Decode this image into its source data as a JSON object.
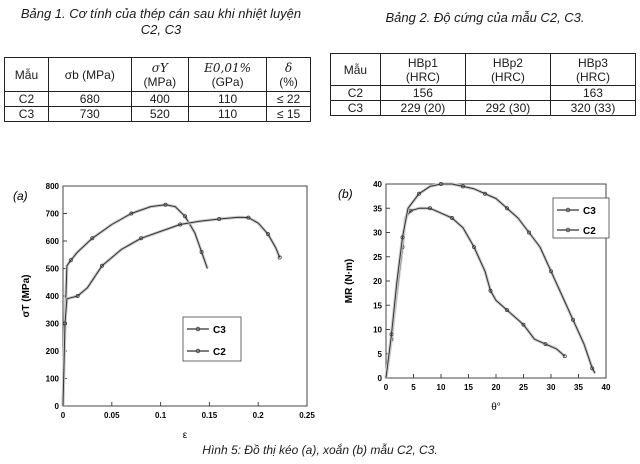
{
  "table1": {
    "caption_line1": "Bảng 1. Cơ tính của thép cán sau khi nhiệt luyện",
    "caption_line2": "C2, C3",
    "headers": {
      "sample": "Mẫu",
      "sigma_b": "σb (MPa)",
      "sigma_y_sym": "σY",
      "sigma_y_unit": "(MPa)",
      "modulus_sym": "E0,01%",
      "modulus_unit": "(GPa)",
      "delta_sym": "δ",
      "delta_unit": "(%)"
    },
    "rows": [
      {
        "sample": "C2",
        "sigma_b": "680",
        "sigma_y": "400",
        "modulus": "110",
        "delta": "≤ 22"
      },
      {
        "sample": "C3",
        "sigma_b": "730",
        "sigma_y": "520",
        "modulus": "110",
        "delta": "≤ 15"
      }
    ]
  },
  "table2": {
    "caption": "Bảng 2. Độ cứng của mẫu C2, C3.",
    "headers": {
      "sample": "Mẫu",
      "hb1": "HBp1",
      "hb2": "HBp2",
      "hb3": "HBp3",
      "unit": "(HRC)"
    },
    "rows": [
      {
        "sample": "C2",
        "hb1": "156",
        "hb2": "",
        "hb3": "163"
      },
      {
        "sample": "C3",
        "hb1": "229 (20)",
        "hb2": "292 (30)",
        "hb3": "320 (33)"
      }
    ]
  },
  "figure_caption": "Hình 5: Đồ thị kéo (a), xoắn (b) mẫu C2, C3.",
  "chart_data": [
    {
      "type": "line",
      "panel_label": "(a)",
      "xlabel": "ε",
      "ylabel": "σT (MPa)",
      "xlim": [
        0,
        0.25
      ],
      "ylim": [
        0,
        800
      ],
      "xticks": [
        "0",
        "0.05",
        "0.1",
        "0.15",
        "0.2",
        "0.25"
      ],
      "yticks": [
        "0",
        "100",
        "200",
        "300",
        "400",
        "500",
        "600",
        "700",
        "800"
      ],
      "grid": false,
      "legend": "center-right",
      "series": [
        {
          "name": "C3",
          "color": "#333333",
          "points": [
            [
              0,
              0
            ],
            [
              0.002,
              300
            ],
            [
              0.004,
              510
            ],
            [
              0.008,
              530
            ],
            [
              0.015,
              560
            ],
            [
              0.03,
              610
            ],
            [
              0.05,
              660
            ],
            [
              0.07,
              700
            ],
            [
              0.09,
              725
            ],
            [
              0.105,
              732
            ],
            [
              0.115,
              725
            ],
            [
              0.125,
              690
            ],
            [
              0.135,
              630
            ],
            [
              0.142,
              560
            ],
            [
              0.148,
              500
            ]
          ]
        },
        {
          "name": "C2",
          "color": "#333333",
          "points": [
            [
              0,
              0
            ],
            [
              0.002,
              300
            ],
            [
              0.004,
              390
            ],
            [
              0.015,
              400
            ],
            [
              0.025,
              430
            ],
            [
              0.04,
              510
            ],
            [
              0.06,
              570
            ],
            [
              0.08,
              610
            ],
            [
              0.1,
              635
            ],
            [
              0.12,
              660
            ],
            [
              0.14,
              672
            ],
            [
              0.16,
              680
            ],
            [
              0.18,
              686
            ],
            [
              0.19,
              685
            ],
            [
              0.2,
              665
            ],
            [
              0.21,
              625
            ],
            [
              0.218,
              575
            ],
            [
              0.222,
              540
            ]
          ]
        }
      ]
    },
    {
      "type": "line",
      "panel_label": "(b)",
      "xlabel": "θ°",
      "ylabel": "MR (N·m)",
      "xlim": [
        0,
        40
      ],
      "ylim": [
        0,
        40
      ],
      "xticks": [
        "0",
        "5",
        "10",
        "15",
        "20",
        "25",
        "30",
        "35",
        "40"
      ],
      "yticks": [
        "0",
        "5",
        "10",
        "15",
        "20",
        "25",
        "30",
        "35",
        "40"
      ],
      "grid": false,
      "legend": "top-right",
      "series": [
        {
          "name": "C3",
          "color": "#333333",
          "points": [
            [
              0,
              0
            ],
            [
              1,
              8
            ],
            [
              2,
              18
            ],
            [
              3,
              27
            ],
            [
              3.5,
              33
            ],
            [
              4.5,
              34.5
            ],
            [
              6,
              35
            ],
            [
              8,
              35
            ],
            [
              10,
              34
            ],
            [
              12,
              33
            ],
            [
              14,
              31
            ],
            [
              16,
              27
            ],
            [
              18,
              22
            ],
            [
              19,
              18
            ],
            [
              20,
              16
            ],
            [
              22,
              14
            ],
            [
              24,
              12
            ],
            [
              25,
              11
            ],
            [
              27,
              8
            ],
            [
              29,
              7
            ],
            [
              31,
              6
            ],
            [
              32.5,
              4.5
            ]
          ]
        },
        {
          "name": "C2",
          "color": "#333333",
          "points": [
            [
              0,
              0
            ],
            [
              1,
              9
            ],
            [
              2,
              20
            ],
            [
              3,
              29
            ],
            [
              4,
              35
            ],
            [
              6,
              38
            ],
            [
              8,
              39.5
            ],
            [
              10,
              40
            ],
            [
              12,
              40
            ],
            [
              14,
              39.5
            ],
            [
              16,
              39
            ],
            [
              18,
              38
            ],
            [
              20,
              37
            ],
            [
              22,
              35
            ],
            [
              24,
              33
            ],
            [
              26,
              30
            ],
            [
              28,
              27
            ],
            [
              30,
              22
            ],
            [
              32,
              17
            ],
            [
              34,
              12
            ],
            [
              36,
              7
            ],
            [
              37.5,
              2
            ],
            [
              38,
              1
            ]
          ]
        }
      ]
    }
  ]
}
